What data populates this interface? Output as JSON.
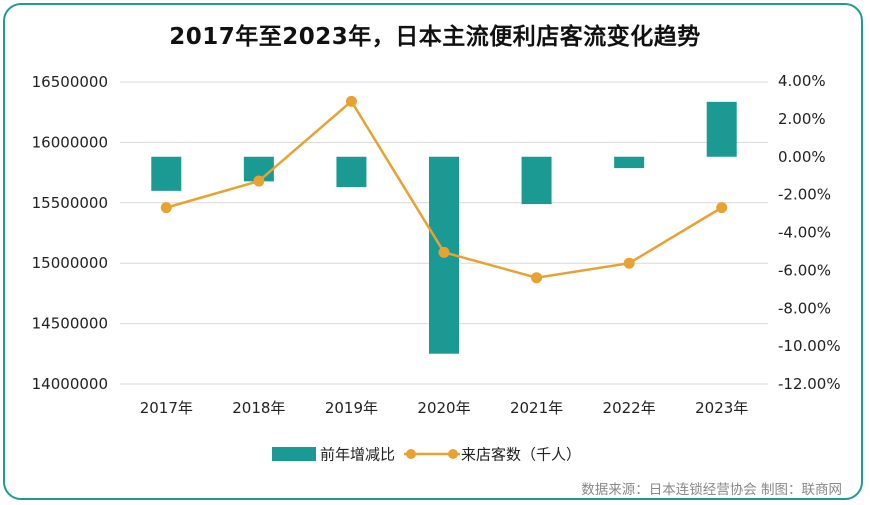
{
  "chart_data": {
    "type": "bar+line",
    "title": "2017年至2023年，日本主流便利店客流变化趋势",
    "categories": [
      "2017年",
      "2018年",
      "2019年",
      "2020年",
      "2021年",
      "2022年",
      "2023年"
    ],
    "series": [
      {
        "name": "前年增减比",
        "kind": "bar",
        "axis": "right",
        "unit": "%",
        "color": "#1a9a92",
        "values": [
          -1.8,
          -1.3,
          -1.6,
          -10.4,
          -2.5,
          -0.6,
          2.9
        ]
      },
      {
        "name": "来店客数（千人）",
        "kind": "line",
        "axis": "left",
        "color": "#e8a232",
        "values": [
          15460000,
          15680000,
          16340000,
          15090000,
          14880000,
          15000000,
          15460000
        ]
      }
    ],
    "y_left": {
      "ticks": [
        "16500000",
        "16000000",
        "15500000",
        "15000000",
        "14500000",
        "14000000"
      ],
      "range": [
        14000000,
        16500000
      ]
    },
    "y_right": {
      "ticks": [
        "4.00%",
        "2.00%",
        "0.00%",
        "-2.00%",
        "-4.00%",
        "-6.00%",
        "-8.00%",
        "-10.00%",
        "-12.00%"
      ],
      "range": [
        -12,
        4
      ]
    },
    "grid": true,
    "legend_position": "bottom",
    "source": "数据来源：日本连锁经营协会  制图：联商网"
  }
}
